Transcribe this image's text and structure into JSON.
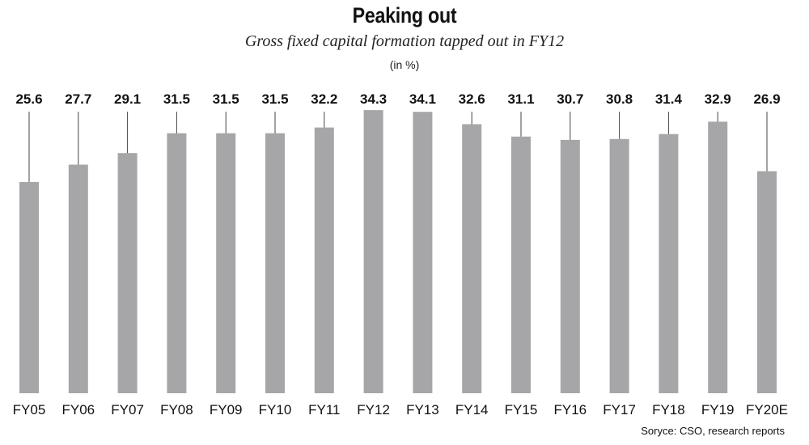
{
  "chart_data": {
    "type": "bar",
    "title": "Peaking out",
    "subtitle": "Gross fixed capital formation tapped out in FY12",
    "unit_note": "(in %)",
    "source": "Sorуce: CSO, research reports",
    "categories": [
      "FY05",
      "FY06",
      "FY07",
      "FY08",
      "FY09",
      "FY10",
      "FY11",
      "FY12",
      "FY13",
      "FY14",
      "FY15",
      "FY16",
      "FY17",
      "FY18",
      "FY19",
      "FY20E"
    ],
    "values": [
      25.6,
      27.7,
      29.1,
      31.5,
      31.5,
      31.5,
      32.2,
      34.3,
      34.1,
      32.6,
      31.1,
      30.7,
      30.8,
      31.4,
      32.9,
      26.9
    ],
    "value_labels": [
      "25.6",
      "27.7",
      "29.1",
      "31.5",
      "31.5",
      "31.5",
      "32.2",
      "34.3",
      "34.1",
      "32.6",
      "31.1",
      "30.7",
      "30.8",
      "31.4",
      "32.9",
      "26.9"
    ],
    "bar_color": "#a6a6a9",
    "leader_color": "#444444",
    "xlabel": "",
    "ylabel": "",
    "grid": false,
    "legend": "none"
  }
}
